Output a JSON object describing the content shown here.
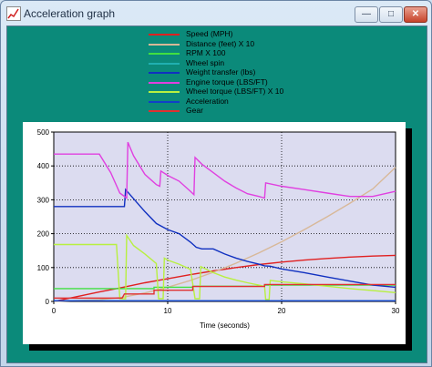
{
  "window": {
    "title": "Acceleration graph",
    "minimize_icon": "minimize-icon",
    "maximize_icon": "maximize-icon",
    "close_icon": "close-icon",
    "minimize_glyph": "—",
    "maximize_glyph": "□",
    "close_glyph": "✕"
  },
  "chart_data": {
    "type": "line",
    "xlabel": "Time (seconds)",
    "ylabel": "",
    "xlim": [
      0,
      30
    ],
    "ylim": [
      0,
      500
    ],
    "xticks": [
      0,
      10,
      20,
      30
    ],
    "yticks": [
      0,
      100,
      200,
      300,
      400,
      500
    ],
    "grid": true,
    "legend_position": "top",
    "plot_background": "#dcdcf0",
    "series": [
      {
        "name": "Speed (MPH)",
        "color": "#e02020",
        "points": [
          [
            0,
            0
          ],
          [
            2,
            14
          ],
          [
            4,
            28
          ],
          [
            6,
            41
          ],
          [
            8,
            55
          ],
          [
            10,
            67
          ],
          [
            12,
            79
          ],
          [
            14,
            90
          ],
          [
            16,
            100
          ],
          [
            18,
            109
          ],
          [
            20,
            116
          ],
          [
            22,
            122
          ],
          [
            24,
            127
          ],
          [
            26,
            131
          ],
          [
            28,
            134
          ],
          [
            30,
            136
          ]
        ]
      },
      {
        "name": "Distance (feet) X 10",
        "color": "#d8b898",
        "points": [
          [
            0,
            0
          ],
          [
            4,
            5
          ],
          [
            6,
            12
          ],
          [
            8,
            25
          ],
          [
            10,
            42
          ],
          [
            12,
            62
          ],
          [
            14,
            86
          ],
          [
            16,
            113
          ],
          [
            18,
            143
          ],
          [
            20,
            176
          ],
          [
            22,
            212
          ],
          [
            24,
            250
          ],
          [
            26,
            290
          ],
          [
            28,
            332
          ],
          [
            30,
            396
          ]
        ]
      },
      {
        "name": "RPM X 100",
        "color": "#40e040",
        "points": [
          [
            0,
            38
          ],
          [
            6,
            38
          ],
          [
            8.8,
            38
          ],
          [
            8.8,
            42
          ],
          [
            12,
            42
          ],
          [
            12.2,
            42
          ],
          [
            12.2,
            45
          ],
          [
            18.5,
            45
          ],
          [
            18.5,
            48
          ],
          [
            30,
            48
          ]
        ]
      },
      {
        "name": "Wheel spin",
        "color": "#20b0b0",
        "points": [
          [
            0,
            2
          ],
          [
            30,
            2
          ]
        ]
      },
      {
        "name": "Weight transfer (lbs)",
        "color": "#1030c0",
        "points": [
          [
            0,
            280
          ],
          [
            6.2,
            280
          ],
          [
            6.3,
            330
          ],
          [
            8,
            265
          ],
          [
            9,
            230
          ],
          [
            10,
            212
          ],
          [
            11,
            200
          ],
          [
            12,
            175
          ],
          [
            12.5,
            160
          ],
          [
            13,
            155
          ],
          [
            14,
            155
          ],
          [
            15,
            140
          ],
          [
            16,
            128
          ],
          [
            17,
            118
          ],
          [
            18,
            110
          ],
          [
            18.5,
            105
          ],
          [
            19,
            104
          ],
          [
            20,
            96
          ],
          [
            22,
            85
          ],
          [
            24,
            72
          ],
          [
            26,
            60
          ],
          [
            28,
            48
          ],
          [
            30,
            42
          ]
        ]
      },
      {
        "name": "Engine torque (LBS/FT)",
        "color": "#e040e0",
        "points": [
          [
            0,
            435
          ],
          [
            4,
            435
          ],
          [
            5,
            380
          ],
          [
            5.8,
            320
          ],
          [
            6.4,
            305
          ],
          [
            6.5,
            470
          ],
          [
            7,
            430
          ],
          [
            8,
            375
          ],
          [
            9,
            345
          ],
          [
            9.3,
            340
          ],
          [
            9.4,
            385
          ],
          [
            10,
            372
          ],
          [
            11,
            355
          ],
          [
            12,
            325
          ],
          [
            12.3,
            315
          ],
          [
            12.4,
            425
          ],
          [
            13,
            405
          ],
          [
            14,
            380
          ],
          [
            15,
            355
          ],
          [
            16,
            335
          ],
          [
            17,
            318
          ],
          [
            18,
            310
          ],
          [
            18.5,
            305
          ],
          [
            18.6,
            350
          ],
          [
            20,
            340
          ],
          [
            22,
            330
          ],
          [
            24,
            320
          ],
          [
            26,
            310
          ],
          [
            28,
            310
          ],
          [
            30,
            325
          ]
        ]
      },
      {
        "name": "Wheel torque (LBS/FT) X 10",
        "color": "#b8f040",
        "points": [
          [
            0,
            168
          ],
          [
            5.5,
            168
          ],
          [
            5.8,
            8
          ],
          [
            6.3,
            8
          ],
          [
            6.4,
            195
          ],
          [
            7,
            165
          ],
          [
            8,
            140
          ],
          [
            9,
            112
          ],
          [
            9.2,
            8
          ],
          [
            9.6,
            8
          ],
          [
            9.7,
            128
          ],
          [
            10,
            122
          ],
          [
            11,
            110
          ],
          [
            12,
            95
          ],
          [
            12.4,
            8
          ],
          [
            12.8,
            8
          ],
          [
            12.9,
            103
          ],
          [
            14,
            85
          ],
          [
            15,
            72
          ],
          [
            16,
            63
          ],
          [
            17,
            55
          ],
          [
            18,
            48
          ],
          [
            18.5,
            44
          ],
          [
            18.6,
            6
          ],
          [
            18.9,
            6
          ],
          [
            19,
            62
          ],
          [
            20,
            58
          ],
          [
            22,
            52
          ],
          [
            24,
            45
          ],
          [
            26,
            38
          ],
          [
            28,
            32
          ],
          [
            30,
            26
          ]
        ]
      },
      {
        "name": "Acceleration",
        "color": "#1040c8",
        "points": [
          [
            0,
            2
          ],
          [
            30,
            2
          ]
        ]
      },
      {
        "name": "Gear",
        "color": "#e03030",
        "points": [
          [
            0,
            10
          ],
          [
            6,
            10
          ],
          [
            6.2,
            22
          ],
          [
            8.8,
            22
          ],
          [
            8.8,
            33
          ],
          [
            12.2,
            33
          ],
          [
            12.2,
            44
          ],
          [
            18.5,
            44
          ],
          [
            18.5,
            50
          ],
          [
            30,
            50
          ]
        ]
      }
    ]
  }
}
